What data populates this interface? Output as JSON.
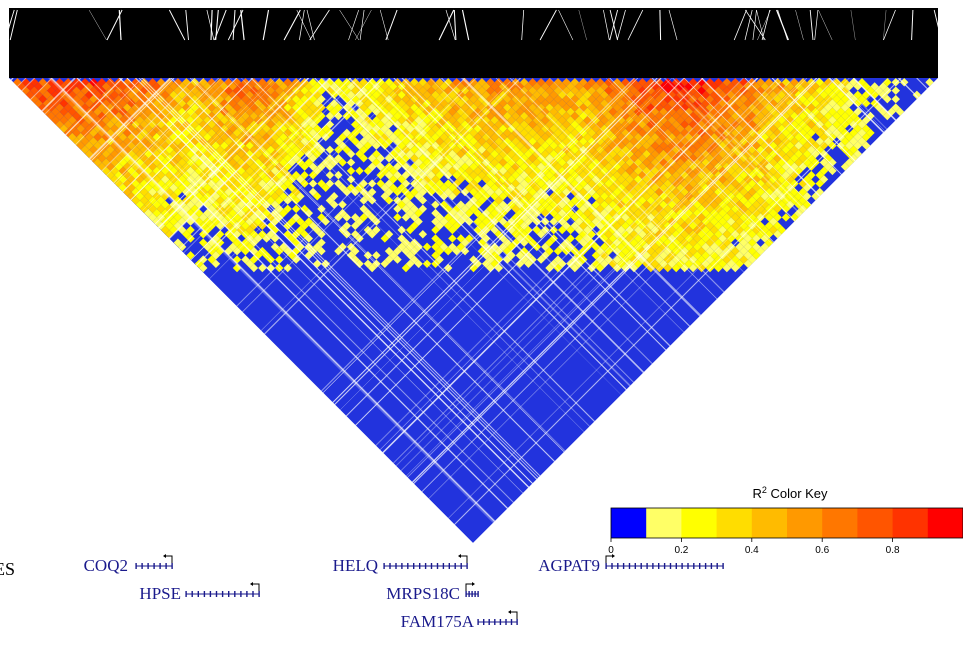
{
  "chart_data": {
    "type": "heatmap",
    "description": "",
    "color_key": {
      "title_prefix": "R",
      "title_sup": "2",
      "title_suffix": " Color Key",
      "range": [
        0,
        1
      ],
      "bins": [
        0,
        0.1,
        0.2,
        0.3,
        0.4,
        0.5,
        0.6,
        0.7,
        0.8,
        0.9,
        1.0
      ],
      "colors": [
        "#0000ff",
        "#ffff66",
        "#ffff00",
        "#ffdd00",
        "#ffbb00",
        "#ff9900",
        "#ff7700",
        "#ff5500",
        "#ff3300",
        "#ff0000"
      ],
      "tick_labels": [
        "0",
        "0.2",
        "0.4",
        "0.6",
        "0.8"
      ],
      "tick_values": [
        0,
        0.2,
        0.4,
        0.6,
        0.8
      ]
    },
    "track_label": "ES",
    "genes": [
      {
        "name": "COQ2",
        "strand": "-",
        "row": 0
      },
      {
        "name": "HPSE",
        "strand": "-",
        "row": 1
      },
      {
        "name": "HELQ",
        "strand": "-",
        "row": 0
      },
      {
        "name": "MRPS18C",
        "strand": "+",
        "row": 1
      },
      {
        "name": "FAM175A",
        "strand": "-",
        "row": 2
      },
      {
        "name": "AGPAT9",
        "strand": "+",
        "row": 0
      }
    ],
    "ld_summary": {
      "high_ld_regions": [
        "left edge block",
        "center-right block near AGPAT9"
      ],
      "background_r2": "low (<0.1)"
    }
  }
}
